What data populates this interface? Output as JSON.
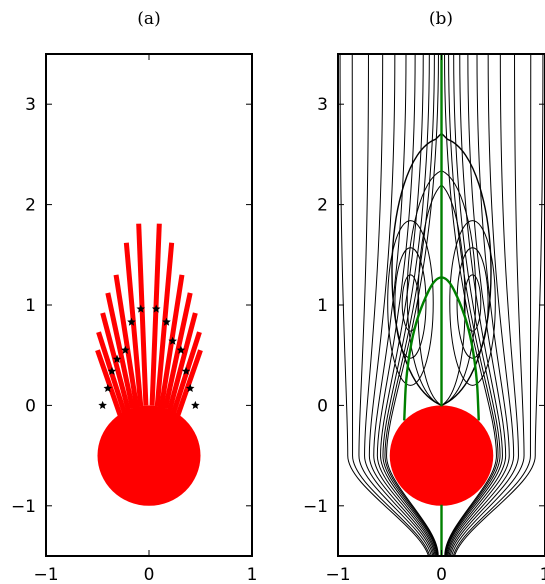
{
  "chart_data": [
    {
      "type": "scatter",
      "title": "(a)",
      "xlabel": "",
      "ylabel": "",
      "xlim": [
        -1,
        1
      ],
      "ylim": [
        -1.5,
        3.5
      ],
      "xticks": [
        -1,
        0,
        1
      ],
      "yticks": [
        -1,
        0,
        1,
        2,
        3
      ],
      "grid": false,
      "circle": {
        "center": [
          0,
          -0.5
        ],
        "radius": 0.5,
        "color": "#ff0000"
      },
      "rays": {
        "color": "#ff0000",
        "lines": [
          {
            "x0": -0.28,
            "y0": -0.1,
            "x1": -0.5,
            "y1": 0.55
          },
          {
            "x0": -0.24,
            "y0": -0.07,
            "x1": -0.49,
            "y1": 0.73
          },
          {
            "x0": -0.2,
            "y0": -0.05,
            "x1": -0.45,
            "y1": 0.92
          },
          {
            "x0": -0.16,
            "y0": -0.03,
            "x1": -0.4,
            "y1": 1.12
          },
          {
            "x0": -0.12,
            "y0": -0.02,
            "x1": -0.32,
            "y1": 1.3
          },
          {
            "x0": -0.08,
            "y0": -0.01,
            "x1": -0.22,
            "y1": 1.62
          },
          {
            "x0": -0.03,
            "y0": 0.0,
            "x1": -0.1,
            "y1": 1.81
          },
          {
            "x0": 0.03,
            "y0": 0.0,
            "x1": 0.1,
            "y1": 1.81
          },
          {
            "x0": 0.08,
            "y0": -0.01,
            "x1": 0.22,
            "y1": 1.62
          },
          {
            "x0": 0.12,
            "y0": -0.02,
            "x1": 0.32,
            "y1": 1.3
          },
          {
            "x0": 0.16,
            "y0": -0.03,
            "x1": 0.4,
            "y1": 1.12
          },
          {
            "x0": 0.2,
            "y0": -0.05,
            "x1": 0.45,
            "y1": 0.92
          },
          {
            "x0": 0.24,
            "y0": -0.07,
            "x1": 0.49,
            "y1": 0.73
          },
          {
            "x0": 0.28,
            "y0": -0.1,
            "x1": 0.5,
            "y1": 0.55
          }
        ]
      },
      "markers": {
        "color": "#000000",
        "points": [
          {
            "x": -0.45,
            "y": 0.0
          },
          {
            "x": -0.4,
            "y": 0.17
          },
          {
            "x": -0.36,
            "y": 0.34
          },
          {
            "x": -0.31,
            "y": 0.46
          },
          {
            "x": -0.23,
            "y": 0.55
          },
          {
            "x": -0.17,
            "y": 0.83
          },
          {
            "x": -0.08,
            "y": 0.96
          },
          {
            "x": 0.07,
            "y": 0.96
          },
          {
            "x": 0.17,
            "y": 0.83
          },
          {
            "x": 0.23,
            "y": 0.64
          },
          {
            "x": 0.31,
            "y": 0.55
          },
          {
            "x": 0.36,
            "y": 0.34
          },
          {
            "x": 0.4,
            "y": 0.17
          },
          {
            "x": 0.45,
            "y": 0.0
          }
        ]
      }
    },
    {
      "type": "line",
      "title": "(b)",
      "xlabel": "",
      "ylabel": "",
      "xlim": [
        -1,
        1
      ],
      "ylim": [
        -1.5,
        3.5
      ],
      "xticks": [
        -1,
        0,
        1
      ],
      "yticks": [
        -1,
        0,
        1,
        2,
        3
      ],
      "grid": false,
      "circle": {
        "center": [
          0,
          -0.5
        ],
        "radius": 0.5,
        "color": "#ff0000"
      },
      "axis_streamline": {
        "color": "#008000",
        "x": 0,
        "y_from": -1.5,
        "y_to": 3.5
      },
      "separatrix_curve": {
        "color": "#008000",
        "points": [
          {
            "x": -0.36,
            "y": -0.15
          },
          {
            "x": -0.34,
            "y": 0.35
          },
          {
            "x": -0.24,
            "y": 0.9
          },
          {
            "x": 0,
            "y": 1.4
          },
          {
            "x": 0.24,
            "y": 0.9
          },
          {
            "x": 0.34,
            "y": 0.35
          },
          {
            "x": 0.36,
            "y": -0.15
          }
        ]
      },
      "streamlines": {
        "color": "#000000",
        "upstream_offsets": [
          0.03,
          0.07,
          0.12,
          0.18,
          0.26,
          0.35,
          0.46,
          0.58,
          0.72,
          0.88,
          1.0
        ],
        "downstream_offsets": [
          0.02,
          0.06,
          0.12,
          0.19,
          0.28,
          0.38,
          0.5,
          0.64,
          0.8,
          0.96
        ],
        "wake_outer": [
          {
            "x": -0.05,
            "y": 1.3
          },
          {
            "x": -0.22,
            "y": 2.65
          },
          {
            "x": -0.45,
            "y": 2.3
          },
          {
            "x": -0.44,
            "y": 0.9
          },
          {
            "x": 0,
            "y": 2.65
          }
        ],
        "vortex_loops": [
          {
            "cx": 0.3,
            "cy": 1.02,
            "rx": [
              0.08,
              0.15,
              0.22
            ],
            "ry": [
              0.28,
              0.55,
              0.82
            ]
          }
        ]
      }
    }
  ]
}
